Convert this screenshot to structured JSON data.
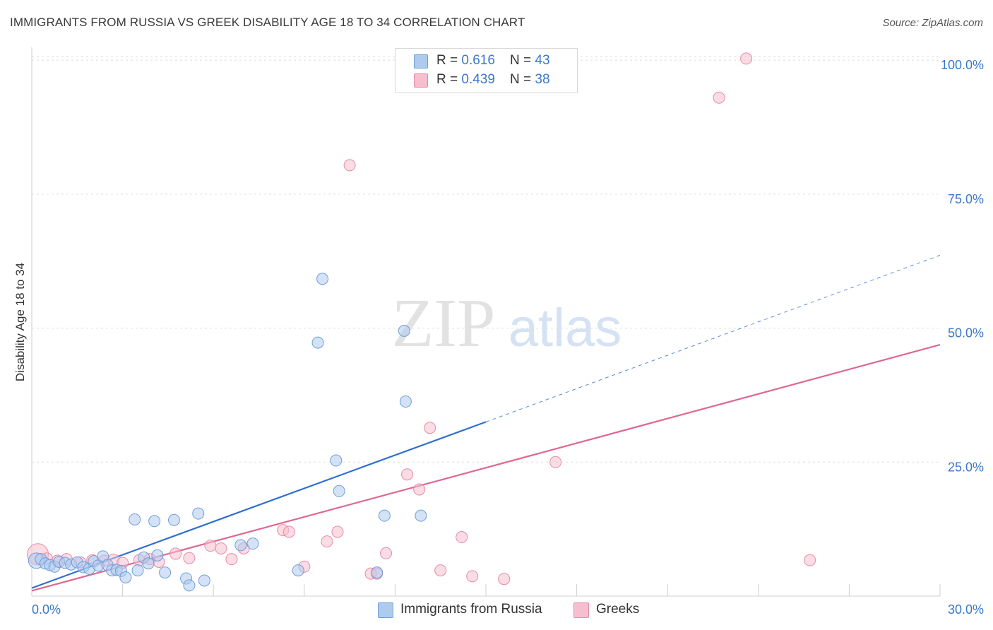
{
  "header": {
    "title": "IMMIGRANTS FROM RUSSIA VS GREEK DISABILITY AGE 18 TO 34 CORRELATION CHART",
    "source": "Source: ZipAtlas.com"
  },
  "watermark": {
    "zip": "ZIP",
    "atlas": "atlas"
  },
  "legend": {
    "rows": [
      {
        "r_label": "R = ",
        "r_value": "0.616",
        "n_label": "N = ",
        "n_value": "43"
      },
      {
        "r_label": "R = ",
        "r_value": "0.439",
        "n_label": "N = ",
        "n_value": "38"
      }
    ]
  },
  "bottom_legend": {
    "items": [
      {
        "label": "Immigrants from Russia"
      },
      {
        "label": "Greeks"
      }
    ]
  },
  "colors": {
    "blue_fill": "#aecbee",
    "blue_stroke": "#6f9ed8",
    "blue_line": "#2f6fcf",
    "pink_fill": "#f6bfcf",
    "pink_stroke": "#e88aa6",
    "pink_line": "#e0678f",
    "tick_label": "#3a78c9",
    "grid": "#dddddd"
  },
  "chart_data": {
    "type": "scatter",
    "title": "IMMIGRANTS FROM RUSSIA VS GREEK DISABILITY AGE 18 TO 34 CORRELATION CHART",
    "xlabel": "",
    "ylabel": "Disability Age 18 to 34",
    "xlim": [
      0,
      30
    ],
    "ylim": [
      0,
      102
    ],
    "x_tick_labels": [
      "0.0%",
      "30.0%"
    ],
    "y_ticks": [
      25,
      50,
      75,
      100
    ],
    "y_tick_labels": [
      "25.0%",
      "50.0%",
      "75.0%",
      "100.0%"
    ],
    "grid": "horizontal dashed",
    "series": [
      {
        "name": "Immigrants from Russia",
        "r": 0.616,
        "n": 43,
        "points": [
          [
            0.15,
            6.6
          ],
          [
            0.3,
            6.9
          ],
          [
            0.45,
            6.1
          ],
          [
            0.6,
            5.8
          ],
          [
            0.75,
            5.5
          ],
          [
            0.9,
            6.4
          ],
          [
            1.1,
            6.2
          ],
          [
            1.3,
            5.9
          ],
          [
            1.5,
            6.3
          ],
          [
            1.7,
            5.4
          ],
          [
            1.9,
            5.1
          ],
          [
            2.05,
            6.5
          ],
          [
            2.2,
            5.7
          ],
          [
            2.35,
            7.4
          ],
          [
            2.5,
            5.8
          ],
          [
            2.65,
            4.8
          ],
          [
            2.8,
            4.9
          ],
          [
            2.95,
            4.7
          ],
          [
            3.1,
            3.5
          ],
          [
            3.4,
            14.3
          ],
          [
            3.5,
            4.8
          ],
          [
            3.7,
            7.2
          ],
          [
            3.85,
            6.1
          ],
          [
            4.05,
            14.0
          ],
          [
            4.15,
            7.6
          ],
          [
            4.4,
            4.4
          ],
          [
            4.7,
            14.2
          ],
          [
            5.1,
            3.3
          ],
          [
            5.2,
            2.0
          ],
          [
            5.5,
            15.4
          ],
          [
            5.7,
            2.9
          ],
          [
            6.9,
            9.5
          ],
          [
            7.3,
            9.8
          ],
          [
            8.8,
            4.8
          ],
          [
            9.45,
            47.3
          ],
          [
            9.6,
            59.2
          ],
          [
            10.05,
            25.3
          ],
          [
            10.15,
            19.6
          ],
          [
            11.4,
            4.4
          ],
          [
            11.65,
            15.0
          ],
          [
            12.3,
            49.5
          ],
          [
            12.35,
            36.3
          ],
          [
            12.85,
            15.0
          ]
        ],
        "trend": {
          "x": [
            0,
            15
          ],
          "y": [
            1.5,
            32.5
          ]
        },
        "trend_extension": {
          "x": [
            15,
            30
          ],
          "y": [
            32.5,
            63.6
          ]
        }
      },
      {
        "name": "Greeks",
        "r": 0.439,
        "n": 38,
        "points": [
          [
            0.2,
            7.8
          ],
          [
            0.5,
            7.0
          ],
          [
            0.85,
            6.6
          ],
          [
            1.15,
            6.9
          ],
          [
            1.6,
            6.3
          ],
          [
            2.0,
            6.7
          ],
          [
            2.4,
            6.6
          ],
          [
            2.7,
            6.8
          ],
          [
            3.0,
            6.2
          ],
          [
            3.55,
            6.7
          ],
          [
            3.9,
            6.9
          ],
          [
            4.2,
            6.4
          ],
          [
            4.75,
            7.9
          ],
          [
            5.2,
            7.1
          ],
          [
            5.9,
            9.4
          ],
          [
            6.25,
            8.9
          ],
          [
            6.6,
            6.9
          ],
          [
            7.0,
            8.9
          ],
          [
            8.3,
            12.3
          ],
          [
            8.5,
            12.0
          ],
          [
            9.0,
            5.5
          ],
          [
            9.75,
            10.2
          ],
          [
            10.1,
            12.0
          ],
          [
            10.5,
            80.4
          ],
          [
            11.2,
            4.2
          ],
          [
            11.4,
            4.2
          ],
          [
            11.7,
            8.0
          ],
          [
            12.4,
            22.7
          ],
          [
            12.8,
            19.9
          ],
          [
            13.15,
            31.4
          ],
          [
            13.5,
            4.8
          ],
          [
            14.2,
            11.0
          ],
          [
            14.55,
            3.7
          ],
          [
            15.6,
            3.2
          ],
          [
            17.3,
            25.0
          ],
          [
            22.7,
            93.0
          ],
          [
            23.6,
            100.3
          ],
          [
            25.7,
            6.7
          ]
        ],
        "trend": {
          "x": [
            0,
            30
          ],
          "y": [
            1.0,
            46.9
          ]
        }
      }
    ]
  }
}
